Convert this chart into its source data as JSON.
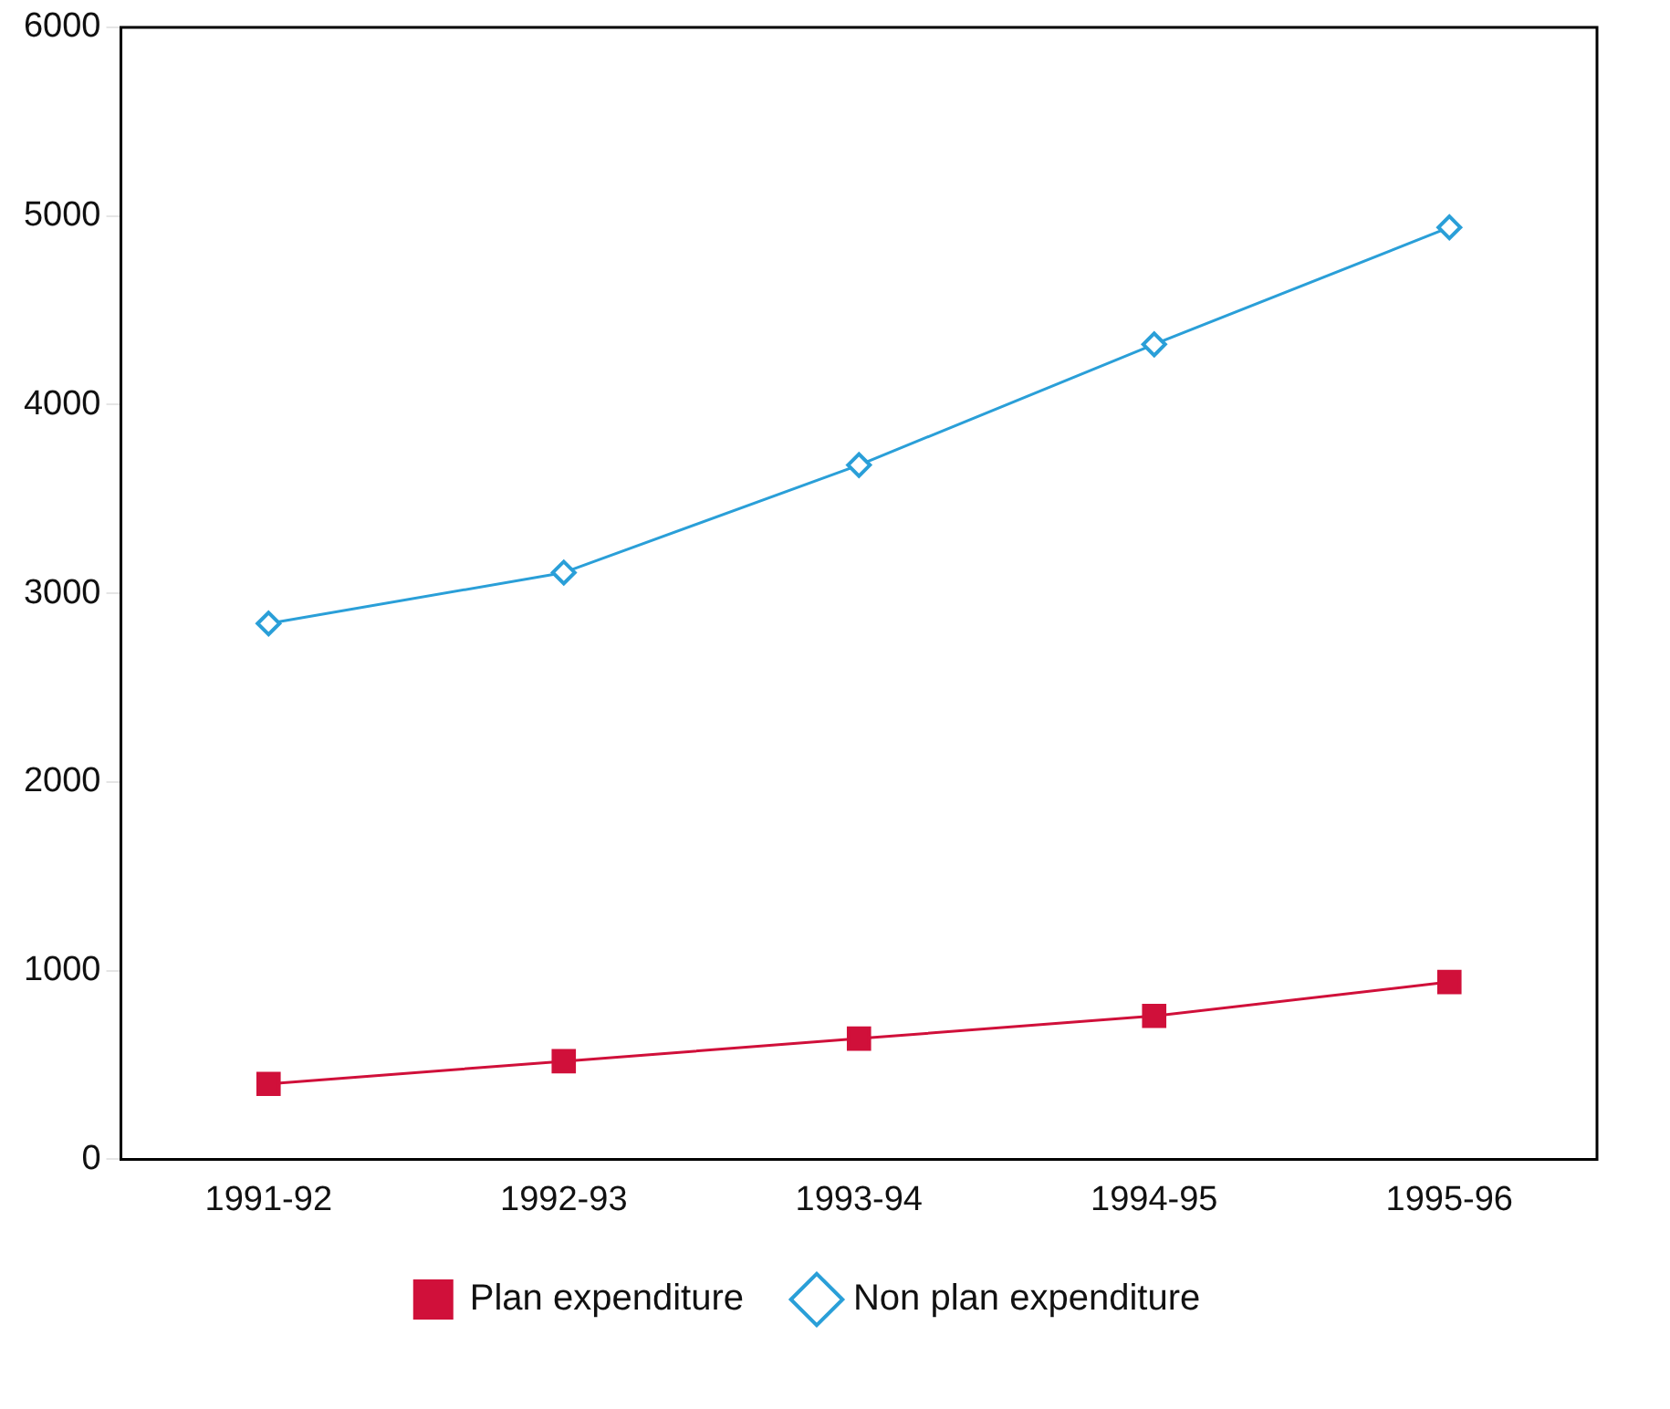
{
  "chart_data": {
    "type": "line",
    "categories": [
      "1991-92",
      "1992-93",
      "1993-94",
      "1994-95",
      "1995-96"
    ],
    "series": [
      {
        "name": "Plan expenditure",
        "color": "#d0103a",
        "marker": "square",
        "values": [
          400,
          520,
          640,
          760,
          940
        ]
      },
      {
        "name": "Non plan expenditure",
        "color": "#2a9fd8",
        "marker": "diamond",
        "values": [
          2840,
          3110,
          3680,
          4320,
          4940
        ]
      }
    ],
    "ylim": [
      0,
      6000
    ],
    "yticks": [
      0,
      1000,
      2000,
      3000,
      4000,
      5000,
      6000
    ],
    "grid": false,
    "legend": "bottom"
  }
}
